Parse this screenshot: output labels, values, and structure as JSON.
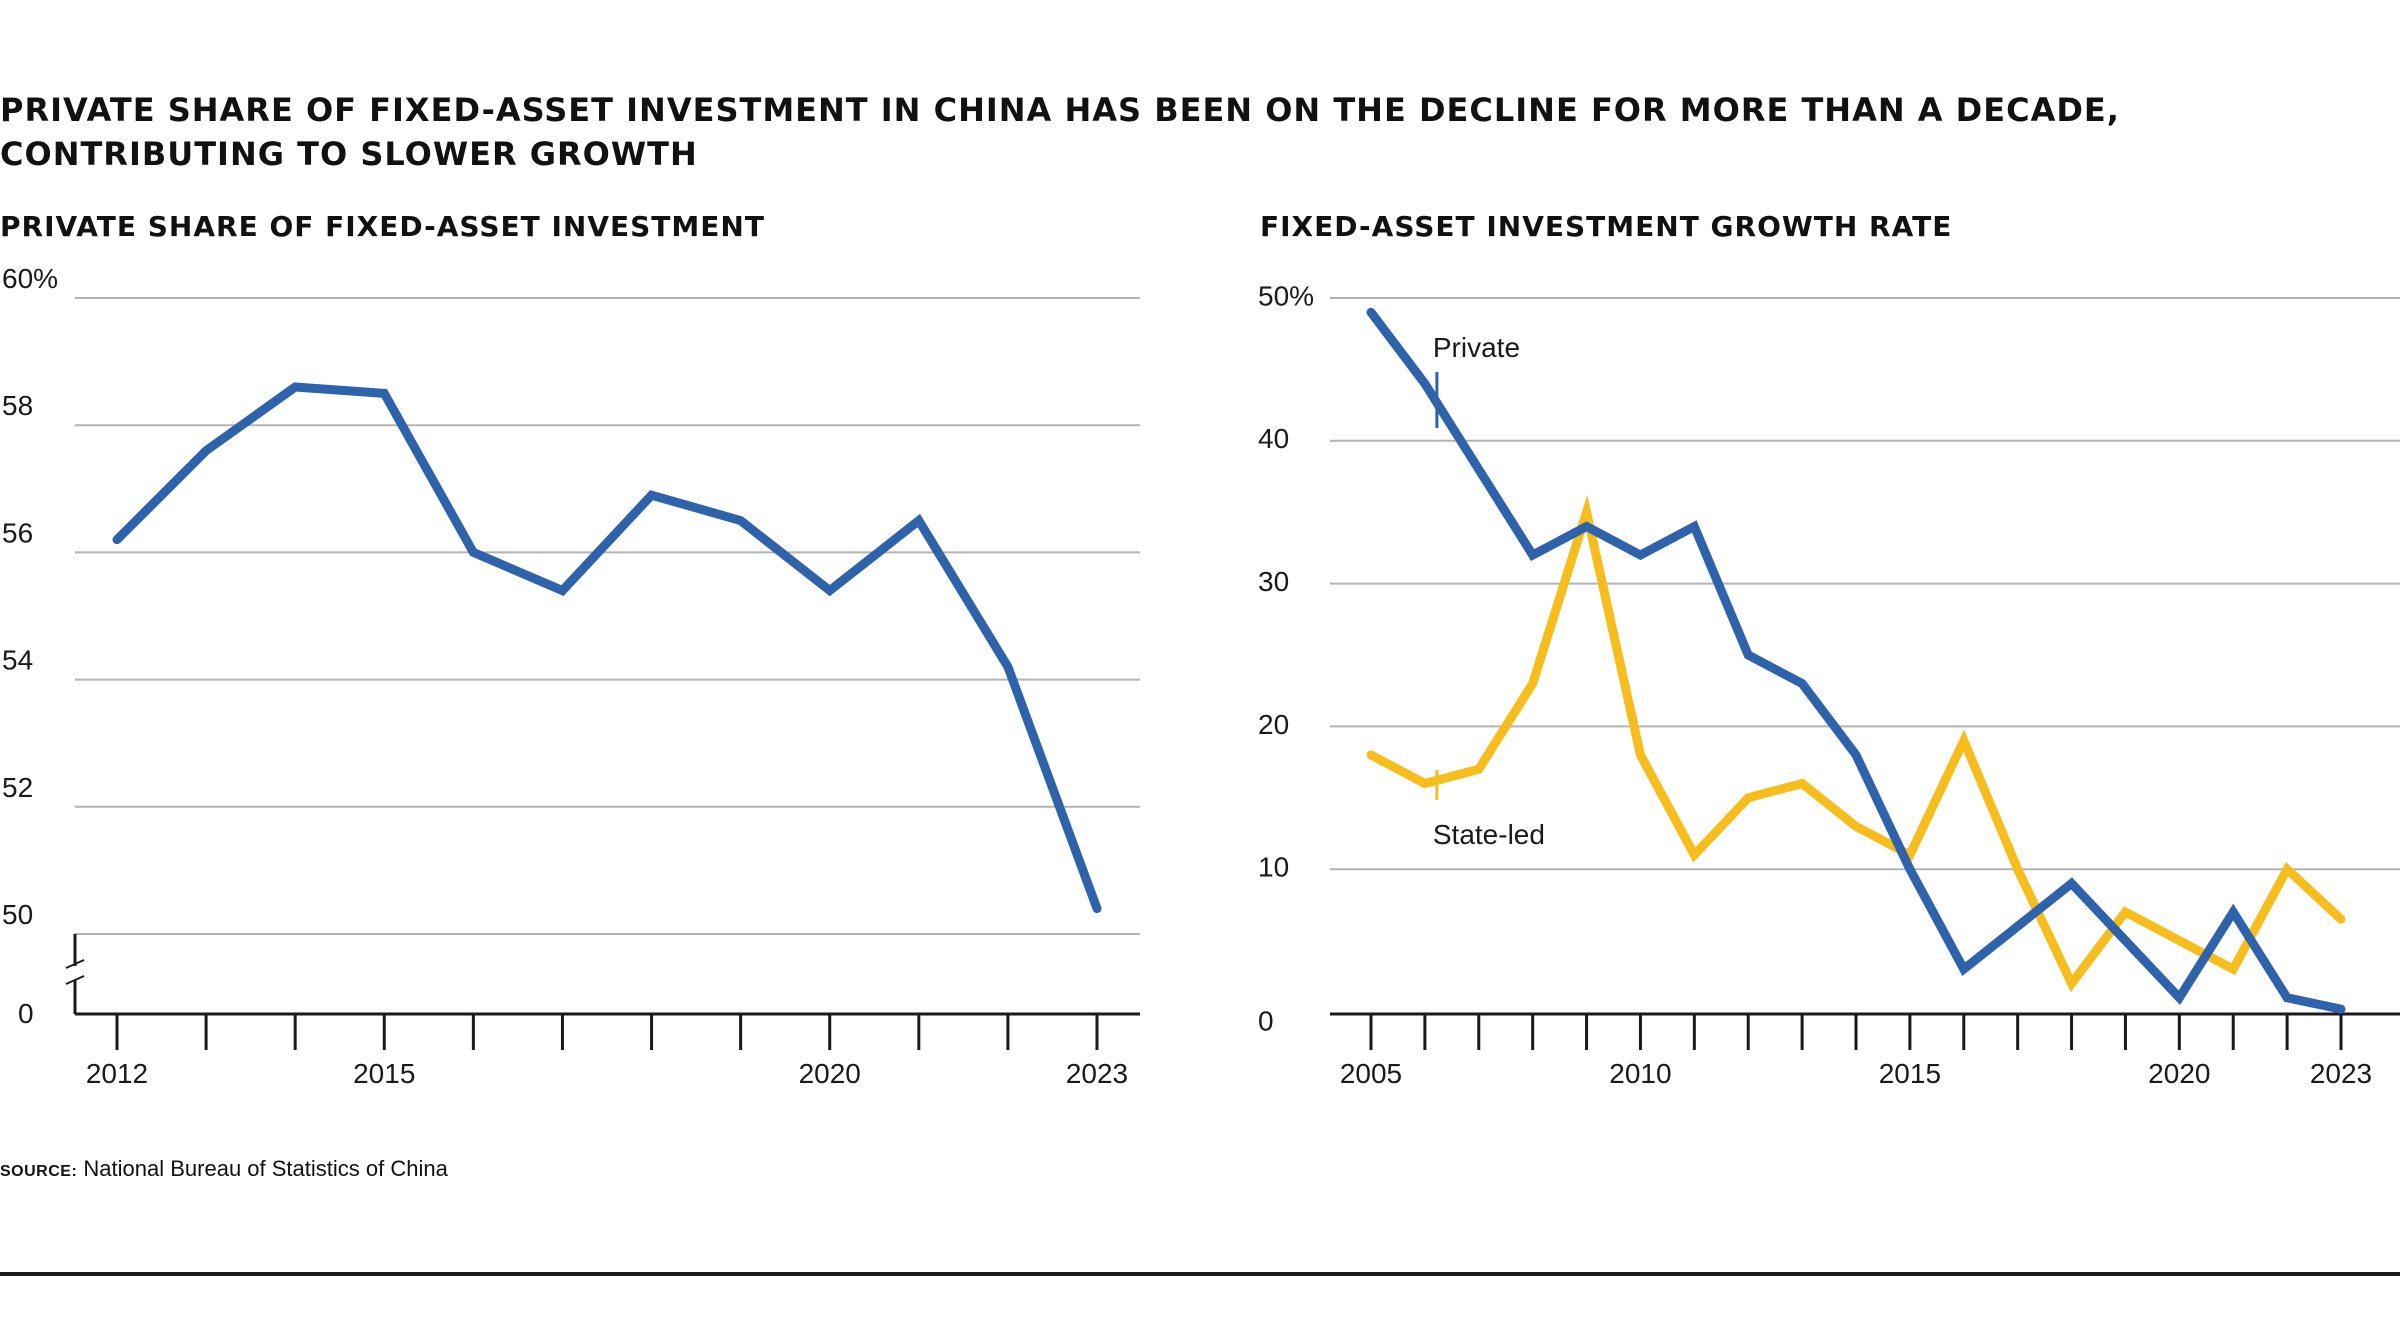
{
  "title_line1": "PRIVATE SHARE OF FIXED-ASSET INVESTMENT IN CHINA HAS BEEN ON THE DECLINE FOR MORE THAN A DECADE,",
  "title_line2": "CONTRIBUTING TO SLOWER GROWTH",
  "colors": {
    "private": "#2e62aa",
    "state": "#f6bd1c",
    "grid": "#b3b3b3",
    "axis": "#1a1a1a"
  },
  "source": {
    "label": "SOURCE:",
    "text": "National Bureau of Statistics of China"
  },
  "chart_data": [
    {
      "type": "line",
      "title": "PRIVATE SHARE OF FIXED-ASSET INVESTMENT",
      "xlabel": "",
      "ylabel": "",
      "x": [
        2012,
        2013,
        2014,
        2015,
        2016,
        2017,
        2018,
        2019,
        2020,
        2021,
        2022,
        2023
      ],
      "series": [
        {
          "name": "Private share",
          "color_key": "private",
          "values": [
            56.2,
            57.6,
            58.6,
            58.5,
            56.0,
            55.4,
            56.9,
            56.5,
            55.4,
            56.5,
            54.2,
            50.4
          ]
        }
      ],
      "ylim": [
        50,
        60
      ],
      "yticks": [
        60,
        58,
        56,
        54,
        52,
        50
      ],
      "ytick_labels": [
        "60%",
        "58",
        "56",
        "54",
        "52",
        "50"
      ],
      "axis_break": true,
      "zero_label": "0",
      "xtick_labels": [
        {
          "year": 2012,
          "label": "2012"
        },
        {
          "year": 2015,
          "label": "2015"
        },
        {
          "year": 2020,
          "label": "2020"
        },
        {
          "year": 2023,
          "label": "2023"
        }
      ]
    },
    {
      "type": "line",
      "title": "FIXED-ASSET INVESTMENT GROWTH RATE",
      "xlabel": "",
      "ylabel": "",
      "x": [
        2005,
        2006,
        2007,
        2008,
        2009,
        2010,
        2011,
        2012,
        2013,
        2014,
        2015,
        2016,
        2017,
        2018,
        2019,
        2020,
        2021,
        2022,
        2023
      ],
      "series": [
        {
          "name": "Private",
          "label": "Private",
          "color_key": "private",
          "values": [
            49,
            44,
            38,
            32,
            34,
            32,
            34,
            25,
            23,
            18,
            10,
            3,
            6,
            9,
            5,
            1,
            7,
            1,
            0.2
          ]
        },
        {
          "name": "State-led",
          "label": "State-led",
          "color_key": "state",
          "values": [
            18,
            16,
            17,
            23,
            35,
            18,
            11,
            15,
            16,
            13,
            11,
            19,
            10,
            2,
            7,
            5,
            3,
            10,
            6.5
          ]
        }
      ],
      "ylim": [
        0,
        50
      ],
      "yticks": [
        50,
        40,
        30,
        20,
        10,
        0
      ],
      "ytick_labels": [
        "50%",
        "40",
        "30",
        "20",
        "10",
        "0"
      ],
      "xtick_labels": [
        {
          "year": 2005,
          "label": "2005"
        },
        {
          "year": 2010,
          "label": "2010"
        },
        {
          "year": 2015,
          "label": "2015"
        },
        {
          "year": 2020,
          "label": "2020"
        },
        {
          "year": 2023,
          "label": "2023"
        }
      ]
    }
  ]
}
